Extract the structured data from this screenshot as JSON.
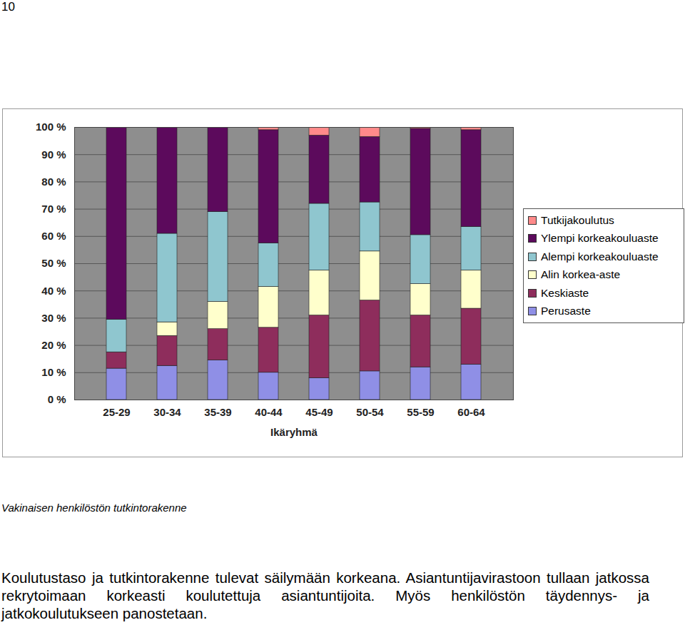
{
  "page": "10",
  "caption": "Vakinaisen henkilöstön tutkintorakenne",
  "text": "Koulutustaso ja tutkintorakenne tulevat säilymään korkeana. Asiantuntijavirastoon tullaan jatkossa rekrytoimaan korkeasti koulutettuja asiantuntijoita. Myös henkilöstön täydennys- ja jatkokoulutukseen panostetaan.",
  "chart_data": {
    "type": "bar",
    "stacked": true,
    "x_label": "Ikäryhmä",
    "categories": [
      "25-29",
      "30-34",
      "35-39",
      "40-44",
      "45-49",
      "50-54",
      "55-59",
      "60-64"
    ],
    "series": [
      {
        "name": "Perusaste",
        "color": "#8f8fe6",
        "values": [
          11.5,
          12.5,
          14.5,
          10,
          8,
          10.5,
          12,
          13
        ]
      },
      {
        "name": "Keskiaste",
        "color": "#8e2d5c",
        "values": [
          6,
          11,
          11.5,
          16.5,
          23,
          26,
          19,
          20.5
        ]
      },
      {
        "name": "Alin korkea-aste",
        "color": "#ffffcc",
        "values": [
          0,
          5,
          10,
          15,
          16.5,
          18,
          11.5,
          14
        ]
      },
      {
        "name": "Alempi korkeakouluaste",
        "color": "#8fc6cf",
        "values": [
          12,
          32.5,
          33,
          16,
          24.5,
          18,
          18,
          16
        ]
      },
      {
        "name": "Ylempi korkeakouluaste",
        "color": "#5c0a5c",
        "values": [
          70.5,
          39,
          31,
          41.5,
          25,
          24,
          39,
          35.5
        ]
      },
      {
        "name": "Tutkijakoulutus",
        "color": "#ff8a8a",
        "values": [
          0,
          0,
          0,
          1,
          3,
          3.5,
          0.5,
          1
        ]
      }
    ],
    "ylim": [
      0,
      100
    ],
    "yticks": [
      {
        "value": 0,
        "label": "0 %"
      },
      {
        "value": 10,
        "label": "10 %"
      },
      {
        "value": 20,
        "label": "20 %"
      },
      {
        "value": 30,
        "label": "30 %"
      },
      {
        "value": 40,
        "label": "40 %"
      },
      {
        "value": 50,
        "label": "50 %"
      },
      {
        "value": 60,
        "label": "60 %"
      },
      {
        "value": 70,
        "label": "70 %"
      },
      {
        "value": 80,
        "label": "80 %"
      },
      {
        "value": 90,
        "label": "90 %"
      },
      {
        "value": 100,
        "label": "100 %"
      }
    ],
    "grid": true,
    "legend": "right"
  }
}
